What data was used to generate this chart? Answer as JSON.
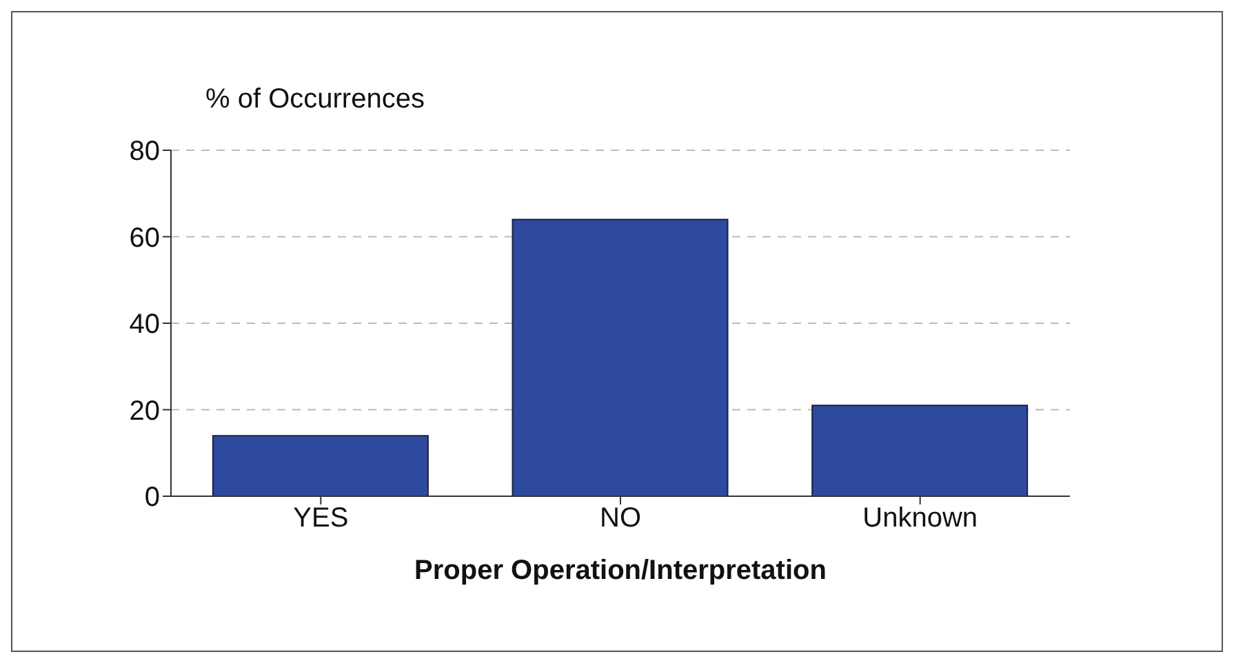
{
  "chart_data": {
    "type": "bar",
    "ylabel": "% of Occurrences",
    "xlabel": "Proper Operation/Interpretation",
    "categories": [
      "YES",
      "NO",
      "Unknown"
    ],
    "values": [
      14,
      64,
      21
    ],
    "color": "#2e4a9e",
    "ylim": [
      0,
      80
    ],
    "yticks": [
      0,
      20,
      40,
      60,
      80
    ],
    "grid": "y",
    "legend": false
  }
}
